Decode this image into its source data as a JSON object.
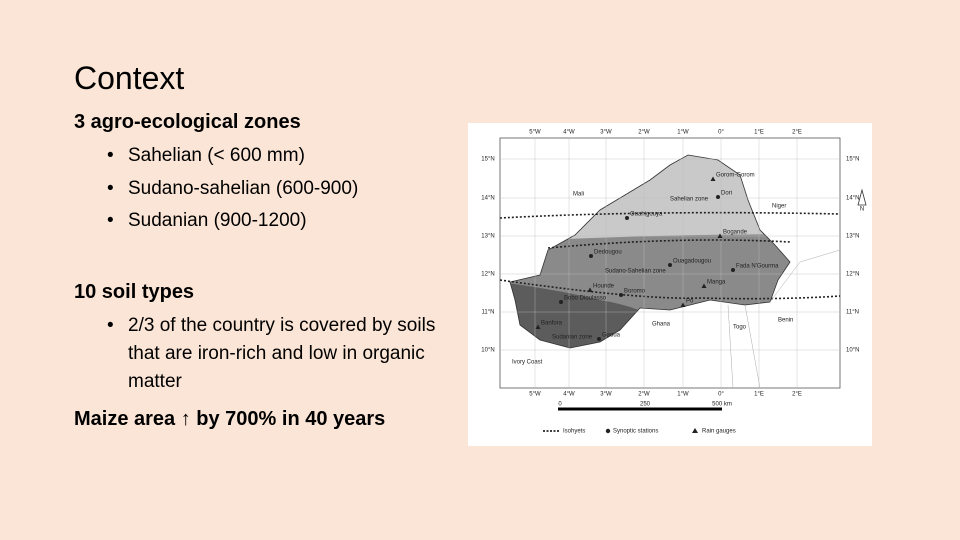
{
  "slide": {
    "title": "Context",
    "zones_heading": "3  agro-ecological zones",
    "zones": [
      "Sahelian (< 600 mm)",
      "Sudano-sahelian (600-900)",
      "Sudanian (900-1200)"
    ],
    "soils_heading": "10  soil types",
    "soils": [
      "2/3 of the country is covered by soils that are iron-rich and low in organic matter"
    ],
    "maize": "Maize area ↑ by 700% in  40 years"
  },
  "map": {
    "longitudes": [
      "5°W",
      "4°W",
      "3°W",
      "2°W",
      "1°W",
      "0°",
      "1°E",
      "2°E"
    ],
    "latitudes": [
      "15°N",
      "14°N",
      "13°N",
      "12°N",
      "11°N",
      "10°N"
    ],
    "countries": [
      "Mali",
      "Niger",
      "Ghana",
      "Togo",
      "Benin",
      "Ivory Coast"
    ],
    "zones": [
      "Sahelian zone",
      "Sudano-Sahelian zone",
      "Sudanian zone"
    ],
    "stations": [
      "Dori",
      "Ouahigouya",
      "Dedougou",
      "Ouagadougou",
      "Fada N'Gourma",
      "Boromo",
      "Bobo Dioulasso",
      "Gaoua"
    ],
    "gauges": [
      "Gorom-Gorom",
      "Bogande",
      "Manga",
      "Po",
      "Hounde",
      "Banfora"
    ],
    "scale": [
      "0",
      "250",
      "500 km"
    ],
    "legend": [
      "Isohyets",
      "Synoptic stations",
      "Rain gauges"
    ],
    "north": "N"
  }
}
